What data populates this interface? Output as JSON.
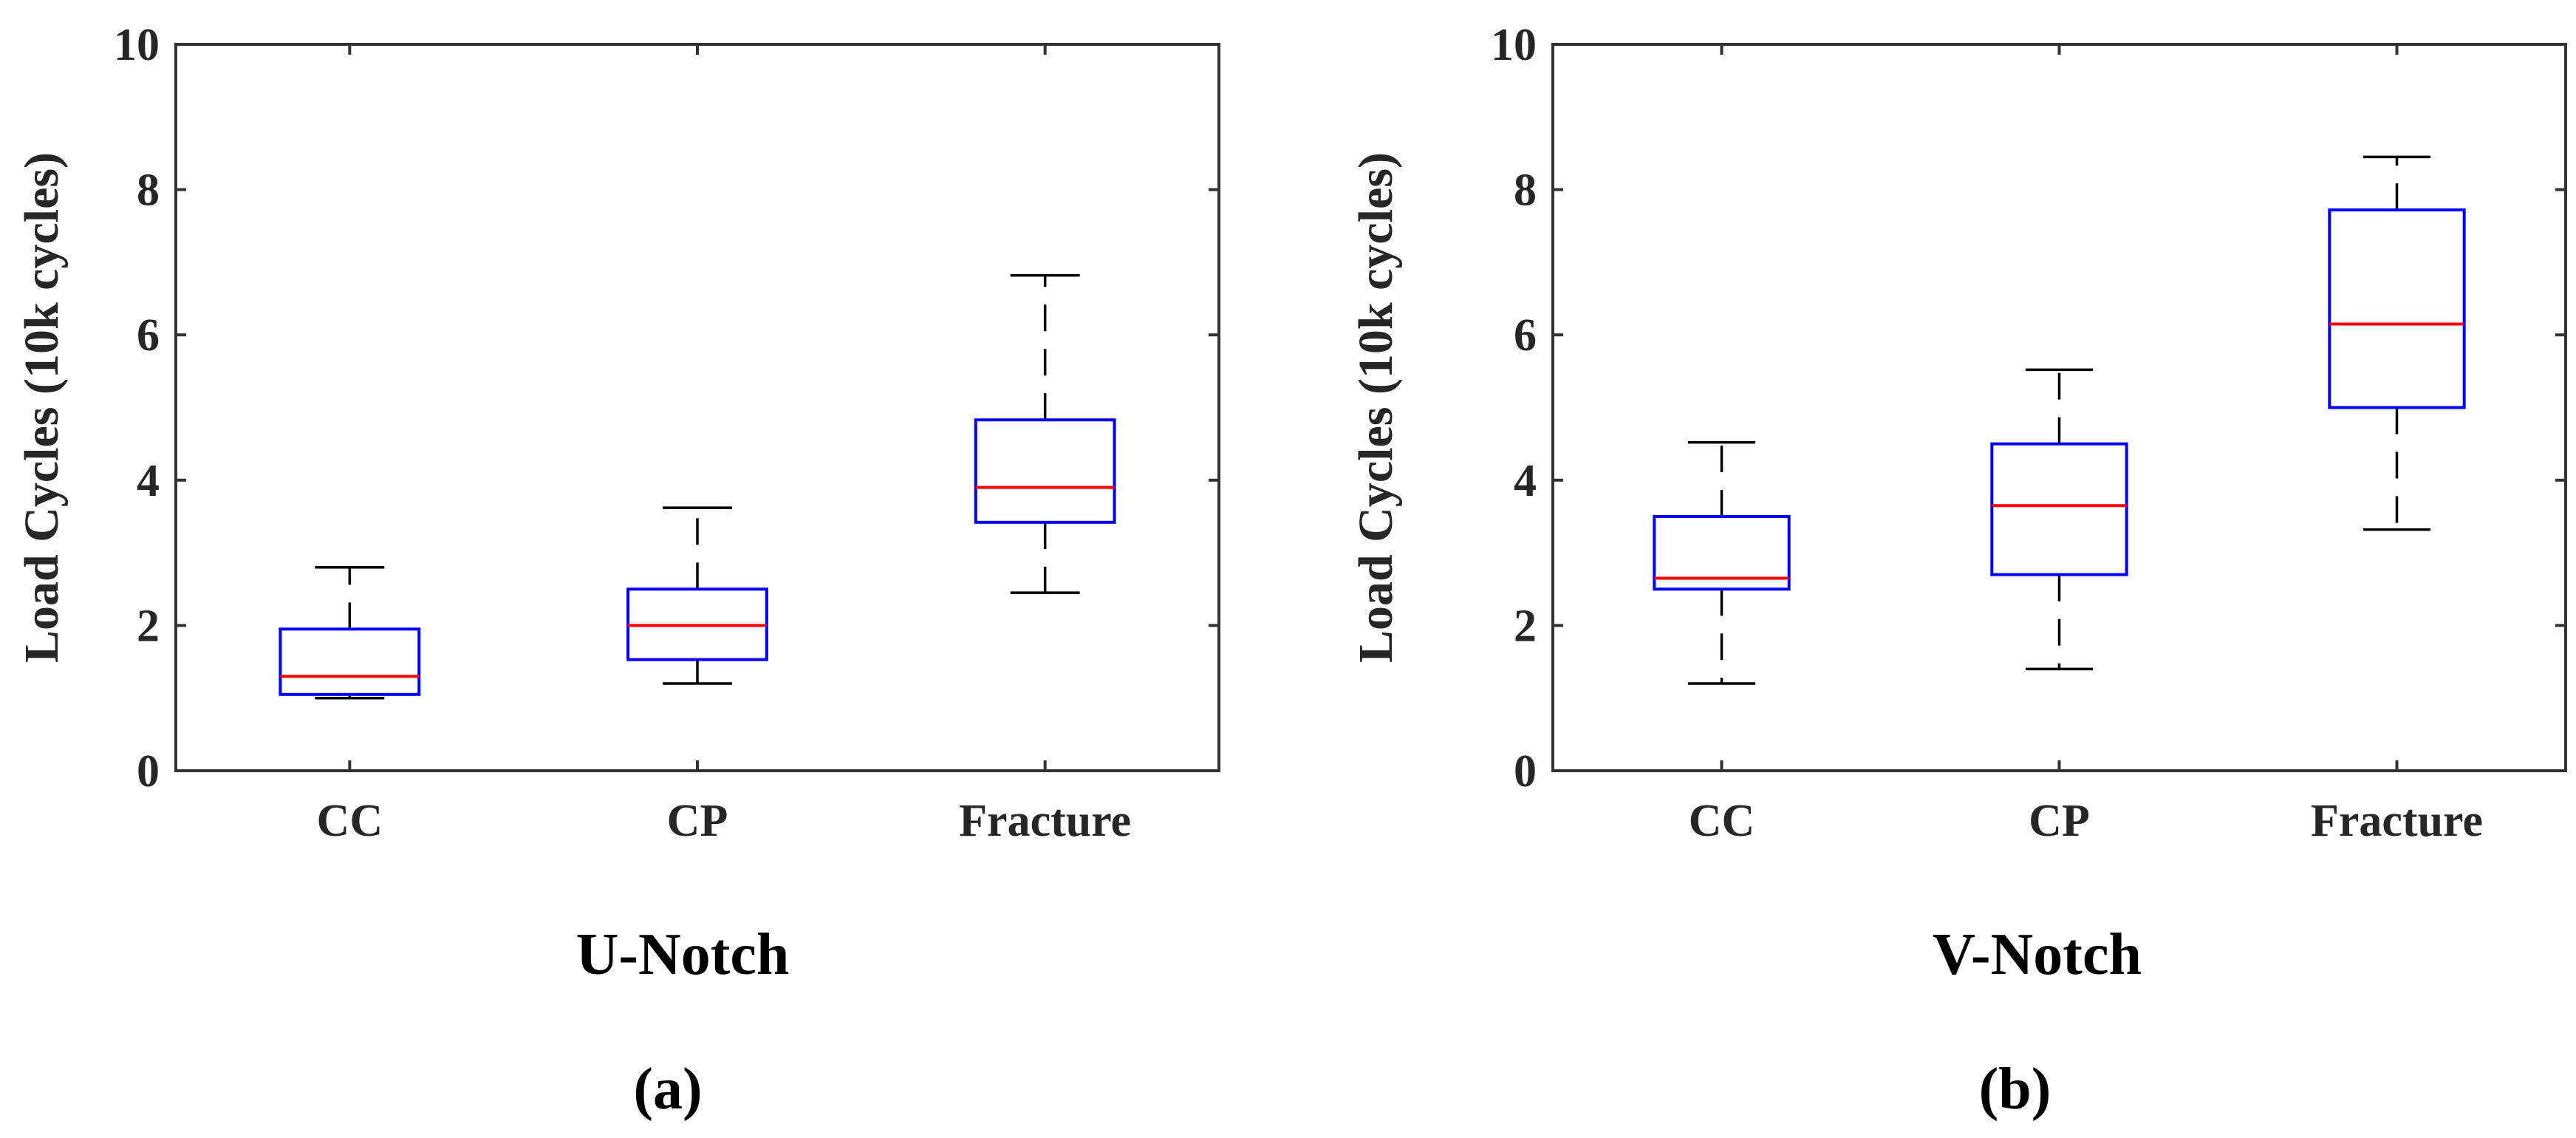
{
  "colors": {
    "box": "#0000ff",
    "median": "#ff0000",
    "whisker": "#000000",
    "axis": "#333333"
  },
  "chart_data": [
    {
      "type": "box",
      "panel_label": "(a)",
      "xlabel": "U-Notch",
      "ylabel": "Load Cycles (10k cycles)",
      "ylim": [
        0,
        10
      ],
      "yticks": [
        "0",
        "2",
        "4",
        "6",
        "8",
        "10"
      ],
      "ytick_values": [
        0,
        2,
        4,
        6,
        8,
        10
      ],
      "categories": [
        "CC",
        "CP",
        "Fracture"
      ],
      "boxes": [
        {
          "category": "CC",
          "min": 1.0,
          "q1": 1.05,
          "median": 1.3,
          "q3": 1.95,
          "max": 2.8
        },
        {
          "category": "CP",
          "min": 1.2,
          "q1": 1.53,
          "median": 2.0,
          "q3": 2.5,
          "max": 3.62
        },
        {
          "category": "Fracture",
          "min": 2.45,
          "q1": 3.42,
          "median": 3.9,
          "q3": 4.83,
          "max": 6.82
        }
      ]
    },
    {
      "type": "box",
      "panel_label": "(b)",
      "xlabel": "V-Notch",
      "ylabel": "Load Cycles (10k cycles)",
      "ylim": [
        0,
        10
      ],
      "yticks": [
        "0",
        "2",
        "4",
        "6",
        "8",
        "10"
      ],
      "ytick_values": [
        0,
        2,
        4,
        6,
        8,
        10
      ],
      "categories": [
        "CC",
        "CP",
        "Fracture"
      ],
      "boxes": [
        {
          "category": "CC",
          "min": 1.2,
          "q1": 2.5,
          "median": 2.65,
          "q3": 3.5,
          "max": 4.52
        },
        {
          "category": "CP",
          "min": 1.4,
          "q1": 2.7,
          "median": 3.65,
          "q3": 4.5,
          "max": 5.52
        },
        {
          "category": "Fracture",
          "min": 3.32,
          "q1": 5.0,
          "median": 6.15,
          "q3": 7.72,
          "max": 8.45
        }
      ]
    }
  ]
}
